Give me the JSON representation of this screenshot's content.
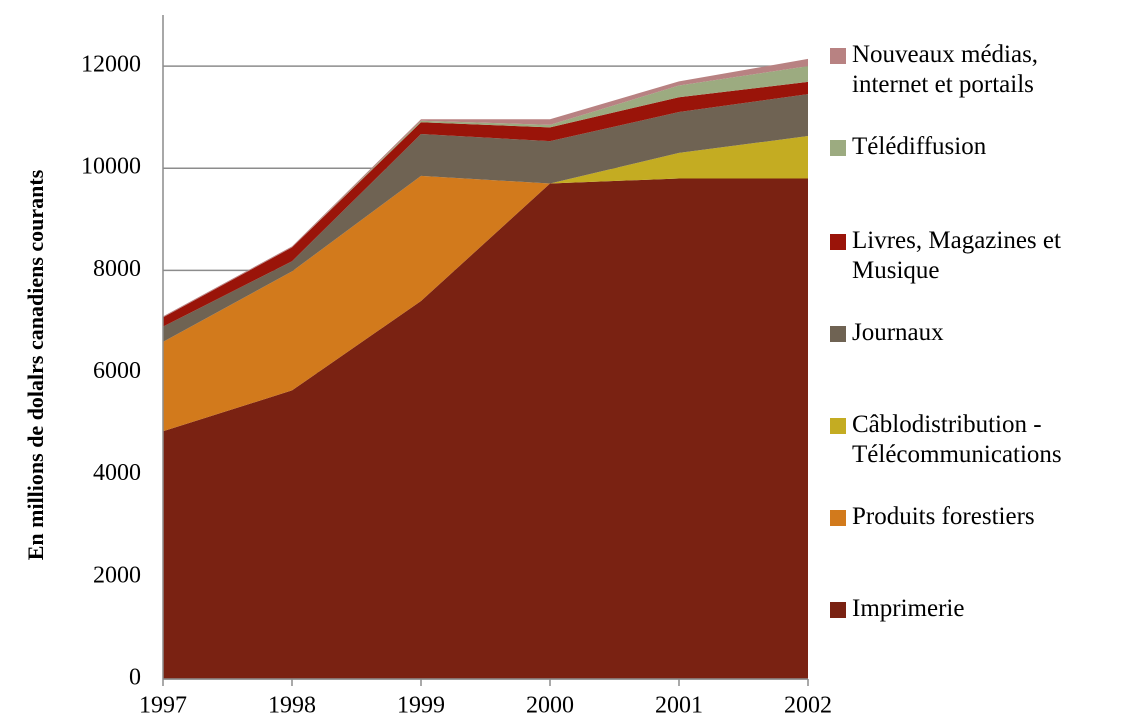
{
  "chart_data": {
    "type": "stacked_area",
    "y_label": "En millions de dolalrs canadiens courants",
    "x": [
      1997,
      1998,
      1999,
      2000,
      2001,
      2002
    ],
    "xlim": [
      1997,
      2002
    ],
    "xticks": [
      1997,
      1998,
      1999,
      2000,
      2001,
      2002
    ],
    "ylim": [
      0,
      13000
    ],
    "yticks": [
      0,
      2000,
      4000,
      6000,
      8000,
      10000,
      12000
    ],
    "grid": true,
    "legend": "right",
    "series": [
      {
        "name": "Imprimerie",
        "color": "#7a2212",
        "values": [
          4850,
          5650,
          7400,
          9700,
          9800,
          9800
        ]
      },
      {
        "name": "Produits forestiers",
        "color": "#d27a1c",
        "values": [
          1750,
          2330,
          2450,
          0,
          0,
          0
        ]
      },
      {
        "name": "Câblodistribution - Télécommunications",
        "color": "#c4ac22",
        "values": [
          0,
          0,
          0,
          0,
          500,
          830
        ]
      },
      {
        "name": "Journaux",
        "color": "#6f6353",
        "values": [
          300,
          200,
          820,
          830,
          800,
          820
        ]
      },
      {
        "name": "Livres, Magazines et Musique",
        "color": "#9a1409",
        "values": [
          180,
          270,
          230,
          270,
          290,
          240
        ]
      },
      {
        "name": "Télédiffusion",
        "color": "#9cab80",
        "values": [
          0,
          0,
          30,
          50,
          230,
          310
        ]
      },
      {
        "name": "Nouveaux médias, internet et portails",
        "color": "#b88282",
        "values": [
          20,
          20,
          30,
          110,
          80,
          140
        ]
      }
    ]
  }
}
